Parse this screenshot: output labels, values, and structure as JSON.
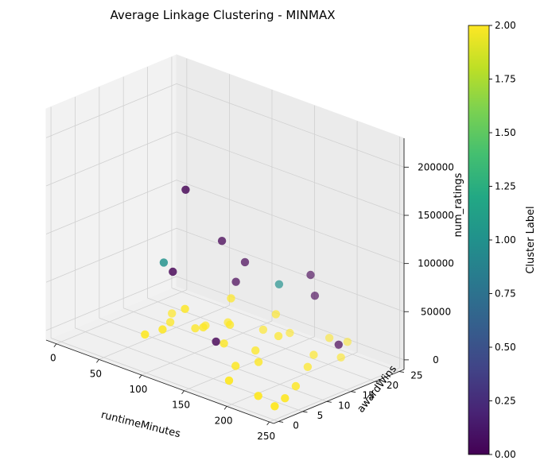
{
  "chart_data": {
    "type": "scatter",
    "title": "Average Linkage Clustering - MINMAX",
    "xlabel": "runtimeMinutes",
    "ylabel": "awardWins",
    "zlabel": "num_ratings",
    "xlim": [
      0,
      250
    ],
    "ylim": [
      0,
      25
    ],
    "zlim": [
      0,
      220000
    ],
    "x_ticks": [
      "0",
      "50",
      "100",
      "150",
      "200",
      "250"
    ],
    "y_ticks": [
      "0",
      "5",
      "10",
      "15",
      "20",
      "25"
    ],
    "z_ticks": [
      "0",
      "50000",
      "100000",
      "150000",
      "200000"
    ],
    "grid": true,
    "colorbar": {
      "label": "Cluster Label",
      "range": [
        0,
        2
      ],
      "ticks": [
        "0.00",
        "0.25",
        "0.50",
        "0.75",
        "1.00",
        "1.25",
        "1.50",
        "1.75",
        "2.00"
      ],
      "colormap": [
        "#440154",
        "#482475",
        "#414487",
        "#355f8d",
        "#2a788e",
        "#21918c",
        "#22a884",
        "#44bf70",
        "#7ad151",
        "#bddf26",
        "#fde725"
      ]
    },
    "points": [
      {
        "x": 95,
        "y": 9,
        "z": 160000,
        "cluster": 0
      },
      {
        "x": 115,
        "y": 13,
        "z": 105000,
        "cluster": 0
      },
      {
        "x": 80,
        "y": 9,
        "z": 70000,
        "cluster": 0
      },
      {
        "x": 125,
        "y": 16,
        "z": 80000,
        "cluster": 0
      },
      {
        "x": 120,
        "y": 15,
        "z": 60000,
        "cluster": 0
      },
      {
        "x": 185,
        "y": 19,
        "z": 80000,
        "cluster": 0
      },
      {
        "x": 190,
        "y": 19,
        "z": 60000,
        "cluster": 0
      },
      {
        "x": 235,
        "y": 16,
        "z": 30000,
        "cluster": 0
      },
      {
        "x": 125,
        "y": 10,
        "z": 10000,
        "cluster": 0
      },
      {
        "x": 75,
        "y": 8,
        "z": 80000,
        "cluster": 1
      },
      {
        "x": 165,
        "y": 16,
        "z": 70000,
        "cluster": 1
      },
      {
        "x": 100,
        "y": 8,
        "z": 40000,
        "cluster": 2
      },
      {
        "x": 120,
        "y": 14,
        "z": 45000,
        "cluster": 2
      },
      {
        "x": 200,
        "y": 24,
        "z": 5000,
        "cluster": 2
      },
      {
        "x": 190,
        "y": 22,
        "z": 10000,
        "cluster": 2
      },
      {
        "x": 215,
        "y": 20,
        "z": 2000,
        "cluster": 2
      },
      {
        "x": 170,
        "y": 15,
        "z": 20000,
        "cluster": 2
      },
      {
        "x": 150,
        "y": 18,
        "z": 30000,
        "cluster": 2
      },
      {
        "x": 130,
        "y": 12,
        "z": 25000,
        "cluster": 2
      },
      {
        "x": 110,
        "y": 10,
        "z": 20000,
        "cluster": 2
      },
      {
        "x": 140,
        "y": 9,
        "z": 15000,
        "cluster": 2
      },
      {
        "x": 160,
        "y": 12,
        "z": 8000,
        "cluster": 2
      },
      {
        "x": 175,
        "y": 10,
        "z": 5000,
        "cluster": 2
      },
      {
        "x": 95,
        "y": 11,
        "z": 12000,
        "cluster": 2
      },
      {
        "x": 85,
        "y": 6,
        "z": 18000,
        "cluster": 2
      },
      {
        "x": 70,
        "y": 5,
        "z": 10000,
        "cluster": 2
      },
      {
        "x": 210,
        "y": 14,
        "z": 3000,
        "cluster": 2
      },
      {
        "x": 230,
        "y": 8,
        "z": 2000,
        "cluster": 2
      },
      {
        "x": 240,
        "y": 4,
        "z": 1000,
        "cluster": 2
      },
      {
        "x": 245,
        "y": 1,
        "z": 500,
        "cluster": 2
      },
      {
        "x": 220,
        "y": 2,
        "z": 1000,
        "cluster": 2
      },
      {
        "x": 180,
        "y": 3,
        "z": 2000,
        "cluster": 2
      },
      {
        "x": 60,
        "y": 12,
        "z": 5000,
        "cluster": 2
      },
      {
        "x": 45,
        "y": 15,
        "z": 3000,
        "cluster": 2
      },
      {
        "x": 200,
        "y": 17,
        "z": 6000,
        "cluster": 2
      },
      {
        "x": 155,
        "y": 20,
        "z": 8000,
        "cluster": 2
      },
      {
        "x": 135,
        "y": 18,
        "z": 9000,
        "cluster": 2
      },
      {
        "x": 90,
        "y": 14,
        "z": 7000,
        "cluster": 2
      },
      {
        "x": 105,
        "y": 16,
        "z": 11000,
        "cluster": 2
      },
      {
        "x": 165,
        "y": 7,
        "z": 4000,
        "cluster": 2
      }
    ]
  }
}
